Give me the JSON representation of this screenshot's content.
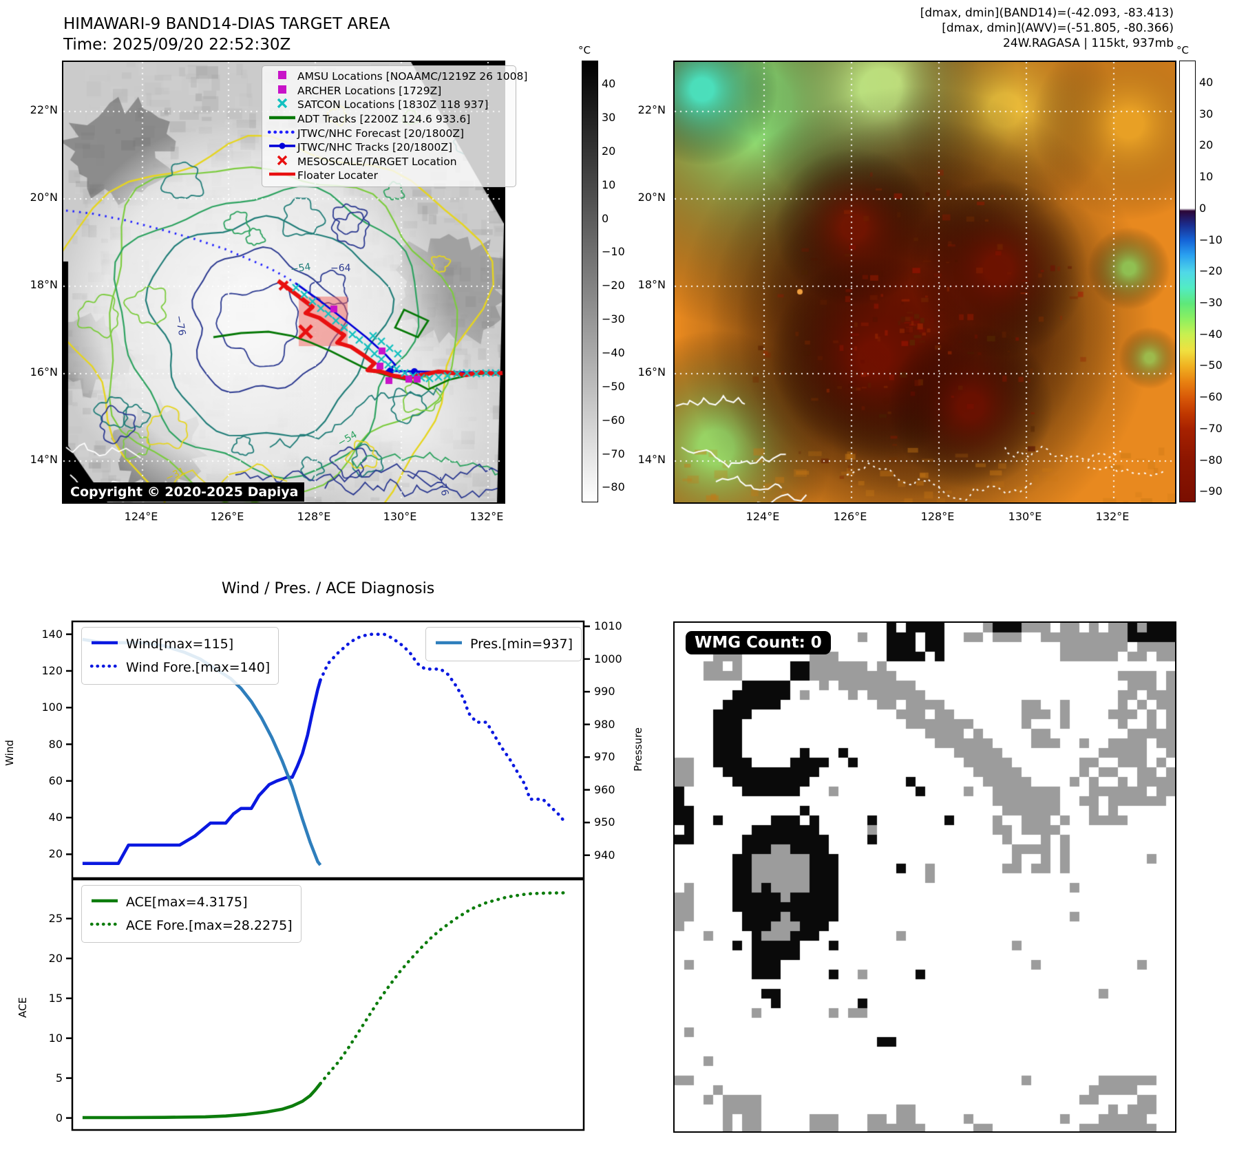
{
  "band14": {
    "title": "HIMAWARI-9 BAND14-DIAS TARGET AREA",
    "subtitle": "Time: 2025/09/20 22:52:30Z",
    "copyright": "Copyright © 2020-2025 Dapiya",
    "x_ticks": [
      "124°E",
      "126°E",
      "128°E",
      "130°E",
      "132°E"
    ],
    "y_ticks": [
      "22°N",
      "20°N",
      "18°N",
      "16°N",
      "14°N"
    ],
    "colorbar": {
      "unit": "°C",
      "ticks": [
        "40",
        "30",
        "20",
        "10",
        "0",
        "−10",
        "−20",
        "−30",
        "−40",
        "−50",
        "−60",
        "−70",
        "−80"
      ]
    },
    "contour_labels": [
      "−54",
      "−64",
      "−76",
      "−31"
    ],
    "legend": [
      {
        "marker": "square",
        "color": "#c813c8",
        "label": "AMSU Locations [NOAAMC/1219Z 26 1008]"
      },
      {
        "marker": "square",
        "color": "#c813c8",
        "label": "ARCHER Locations [1729Z]"
      },
      {
        "marker": "x",
        "color": "#12c0c0",
        "label": "SATCON Locations [1830Z 118 937]"
      },
      {
        "marker": "line",
        "color": "#067806",
        "label": "ADT Tracks [2200Z 124.6 933.6]"
      },
      {
        "marker": "dotted",
        "color": "#2020ff",
        "label": "JTWC/NHC Forecast [20/1800Z]"
      },
      {
        "marker": "line-dot",
        "color": "#0000d8",
        "label": "JTWC/NHC Tracks [20/1800Z]"
      },
      {
        "marker": "x",
        "color": "#e81010",
        "label": "MESOSCALE/TARGET Location"
      },
      {
        "marker": "line",
        "color": "#e81010",
        "label": "Floater Locater"
      }
    ]
  },
  "awv": {
    "header_lines": [
      "[dmax, dmin](BAND14)=(-42.093, -83.413)",
      "[dmax, dmin](AWV)=(-51.805, -80.366)",
      "24W.RAGASA | 115kt, 937mb"
    ],
    "x_ticks": [
      "124°E",
      "126°E",
      "128°E",
      "130°E",
      "132°E"
    ],
    "y_ticks": [
      "22°N",
      "20°N",
      "18°N",
      "16°N",
      "14°N"
    ],
    "colorbar": {
      "unit": "°C",
      "ticks": [
        "40",
        "30",
        "20",
        "10",
        "0",
        "−10",
        "−20",
        "−30",
        "−40",
        "−50",
        "−60",
        "−70",
        "−80",
        "−90"
      ]
    }
  },
  "wmg": {
    "badge": "WMG Count: 0"
  },
  "chart_data": [
    {
      "type": "line",
      "title": "Wind / Pres. / ACE Diagnosis",
      "x_range": [
        0,
        1
      ],
      "grid": false,
      "left_axis": {
        "label": "Wind",
        "ticks": [
          20,
          40,
          60,
          80,
          100,
          120,
          140
        ],
        "ylim": [
          7,
          147
        ]
      },
      "right_axis": {
        "label": "Pressure",
        "ticks": [
          940,
          950,
          960,
          970,
          980,
          990,
          1000,
          1010
        ],
        "ylim": [
          933,
          1011.5
        ]
      },
      "legend_left": [
        "Wind[max=115]",
        "Wind Fore.[max=140]"
      ],
      "legend_right": [
        "Pres.[min=937]"
      ],
      "series": [
        {
          "name": "Wind[max=115]",
          "axis": "left",
          "style": "solid",
          "color": "#0a18e0",
          "x": [
            0.02,
            0.09,
            0.11,
            0.21,
            0.24,
            0.27,
            0.3,
            0.315,
            0.33,
            0.35,
            0.365,
            0.385,
            0.4,
            0.42,
            0.43,
            0.44,
            0.45,
            0.46,
            0.47,
            0.48,
            0.485
          ],
          "y": [
            15,
            15,
            25,
            25,
            30,
            37,
            37,
            42,
            45,
            45,
            52,
            58,
            60,
            62,
            62,
            68,
            75,
            85,
            98,
            110,
            115
          ]
        },
        {
          "name": "Wind Fore.[max=140]",
          "axis": "left",
          "style": "dotted",
          "color": "#0a18e0",
          "x": [
            0.485,
            0.5,
            0.52,
            0.545,
            0.565,
            0.585,
            0.61,
            0.625,
            0.645,
            0.66,
            0.675,
            0.69,
            0.72,
            0.735,
            0.75,
            0.765,
            0.775,
            0.79,
            0.81,
            0.825,
            0.84,
            0.855,
            0.87,
            0.885,
            0.895,
            0.92,
            0.935,
            0.95,
            0.965
          ],
          "y": [
            115,
            124,
            130,
            136,
            139,
            140,
            140,
            138,
            134,
            130,
            124,
            121,
            121,
            118,
            112,
            105,
            97,
            92,
            92,
            85,
            78,
            72,
            65,
            58,
            50,
            50,
            46,
            42,
            37
          ]
        },
        {
          "name": "Pres.[min=937]",
          "axis": "right",
          "style": "solid",
          "color": "#2e7ebc",
          "x": [
            0.02,
            0.06,
            0.1,
            0.14,
            0.18,
            0.22,
            0.25,
            0.28,
            0.31,
            0.33,
            0.35,
            0.37,
            0.39,
            0.41,
            0.43,
            0.45,
            0.465,
            0.48,
            0.485
          ],
          "y": [
            1006,
            1005,
            1005,
            1005,
            1004,
            1002,
            1000,
            997,
            994,
            991,
            987,
            982,
            976,
            969,
            961,
            951,
            944,
            938,
            937
          ]
        }
      ]
    },
    {
      "type": "line",
      "title": "",
      "x_range": [
        0,
        1
      ],
      "grid": false,
      "left_axis": {
        "label": "ACE",
        "ticks": [
          0,
          5,
          10,
          15,
          20,
          25
        ],
        "ylim": [
          -1.5,
          29.9
        ]
      },
      "legend_left": [
        "ACE[max=4.3175]",
        "ACE Fore.[max=28.2275]"
      ],
      "series": [
        {
          "name": "ACE[max=4.3175]",
          "axis": "left",
          "style": "solid",
          "color": "#0c7c0c",
          "x": [
            0.02,
            0.1,
            0.18,
            0.26,
            0.3,
            0.34,
            0.38,
            0.41,
            0.43,
            0.45,
            0.465,
            0.475,
            0.485
          ],
          "y": [
            0.05,
            0.05,
            0.08,
            0.15,
            0.25,
            0.45,
            0.75,
            1.1,
            1.5,
            2.1,
            2.8,
            3.5,
            4.3175
          ]
        },
        {
          "name": "ACE Fore.[max=28.2275]",
          "axis": "left",
          "style": "dotted",
          "color": "#0c7c0c",
          "x": [
            0.485,
            0.5,
            0.52,
            0.54,
            0.56,
            0.58,
            0.6,
            0.62,
            0.64,
            0.66,
            0.68,
            0.7,
            0.72,
            0.75,
            0.78,
            0.81,
            0.85,
            0.89,
            0.93,
            0.965
          ],
          "y": [
            4.3175,
            5.5,
            7.0,
            8.8,
            10.8,
            12.8,
            14.8,
            16.6,
            18.3,
            19.8,
            21.2,
            22.5,
            23.6,
            25.0,
            26.2,
            27.0,
            27.7,
            28.1,
            28.2,
            28.23
          ]
        }
      ]
    }
  ]
}
